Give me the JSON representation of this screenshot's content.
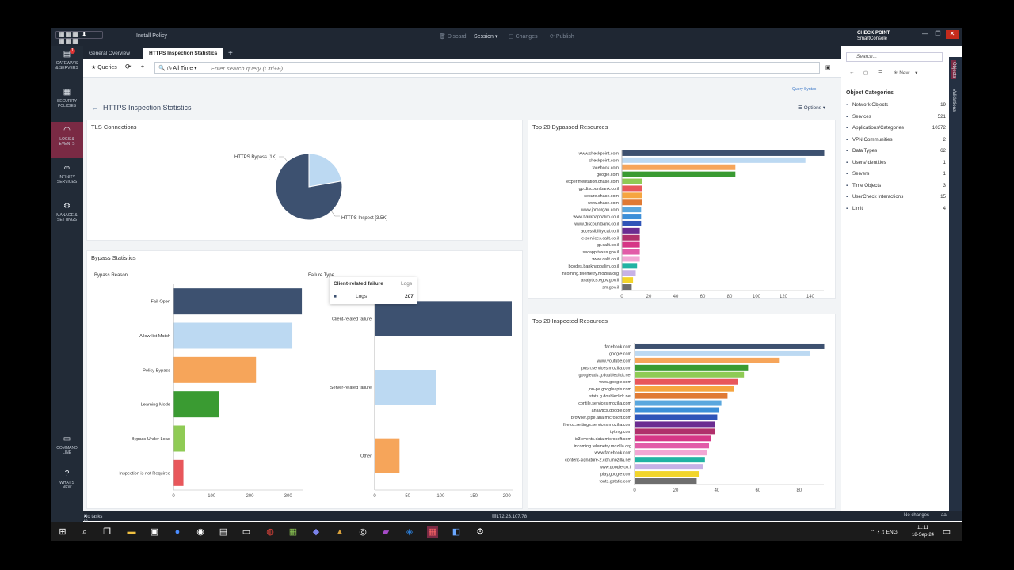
{
  "topbar": {
    "install_policy": "Install Policy",
    "discard": "Discard",
    "session": "Session",
    "changes": "Changes",
    "publish": "Publish",
    "brand_top": "CHECK POINT",
    "brand_bottom": "SmartConsole"
  },
  "nav": [
    {
      "label1": "GATEWAYS",
      "label2": "& SERVERS",
      "badge": "1"
    },
    {
      "label1": "SECURITY",
      "label2": "POLICIES"
    },
    {
      "label1": "LOGS &",
      "label2": "EVENTS"
    },
    {
      "label1": "INFINITY",
      "label2": "SERVICES"
    },
    {
      "label1": "MANAGE &",
      "label2": "SETTINGS"
    },
    {
      "label1": "COMMAND",
      "label2": "LINE"
    },
    {
      "label1": "WHAT'S",
      "label2": "NEW"
    }
  ],
  "tabs": [
    "General Overview",
    "HTTPS Inspection Statistics"
  ],
  "query": {
    "queries": "Queries",
    "time": "All Time",
    "placeholder": "Enter search query (Ctrl+F)",
    "syntax": "Query Syntax"
  },
  "page": {
    "title": "HTTPS Inspection Statistics",
    "options": "Options"
  },
  "tls": {
    "title": "TLS Connections",
    "slices": [
      {
        "label": "HTTPS Bypass [1K]",
        "value": 1,
        "color": "#bcd9f2"
      },
      {
        "label": "HTTPS Inspect [3.5K]",
        "value": 3.5,
        "color": "#3d5170"
      }
    ]
  },
  "bypass": {
    "title": "Bypass Statistics",
    "reason_title": "Bypass Reason",
    "failure_title": "Failure Type"
  },
  "tooltip": {
    "title": "Client-related failure",
    "col": "Logs",
    "row_label": "Logs",
    "row_value": "207"
  },
  "rpanel": {
    "search": "Search...",
    "new": "New...",
    "object_categories": "Object Categories",
    "categories": [
      {
        "name": "Network Objects",
        "count": "19"
      },
      {
        "name": "Services",
        "count": "521"
      },
      {
        "name": "Applications/Categories",
        "count": "10372"
      },
      {
        "name": "VPN Communities",
        "count": "2"
      },
      {
        "name": "Data Types",
        "count": "62"
      },
      {
        "name": "Users/Identities",
        "count": "1"
      },
      {
        "name": "Servers",
        "count": "1"
      },
      {
        "name": "Time Objects",
        "count": "3"
      },
      {
        "name": "UserCheck Interactions",
        "count": "15"
      },
      {
        "name": "Limit",
        "count": "4"
      }
    ],
    "strip": [
      "Objects",
      "Validations"
    ]
  },
  "status": {
    "tasks": "No tasks in progress",
    "ip": "172.23.107.78",
    "changes": "No changes",
    "user": "aa"
  },
  "taskbar": {
    "lang": "ENG",
    "time": "11:11",
    "date": "18-Sep-24"
  },
  "chart_data": [
    {
      "type": "pie",
      "title": "TLS Connections",
      "categories": [
        "HTTPS Bypass [1K]",
        "HTTPS Inspect [3.5K]"
      ],
      "values": [
        1000,
        3500
      ]
    },
    {
      "type": "bar",
      "orientation": "horizontal",
      "title": "Bypass Reason",
      "categories": [
        "Fail-Open",
        "Allow-list Match",
        "Policy Bypass",
        "Learning Mode",
        "Bypass Under Load",
        "Inspection is not Required"
      ],
      "values": [
        335,
        310,
        215,
        118,
        28,
        25
      ],
      "colors": [
        "#3d5170",
        "#bcd9f2",
        "#f6a55a",
        "#3a9b32",
        "#8fcb55",
        "#e8575b"
      ],
      "ticks": [
        0,
        100,
        200,
        300
      ],
      "xlim": [
        0,
        340
      ]
    },
    {
      "type": "bar",
      "orientation": "horizontal",
      "title": "Failure Type",
      "categories": [
        "Client-related failure",
        "Server-related failure",
        "Other"
      ],
      "values": [
        207,
        92,
        37
      ],
      "colors": [
        "#3d5170",
        "#bcd9f2",
        "#f6a55a"
      ],
      "ticks": [
        0,
        50,
        100,
        150,
        200
      ],
      "xlim": [
        0,
        210
      ]
    },
    {
      "type": "bar",
      "orientation": "horizontal",
      "title": "Top 20 Bypassed Resources",
      "categories": [
        "www.checkpoint.com",
        "checkpoint.com",
        "facebook.com",
        "google.com",
        "experimentation.chase.com",
        "gp.discountbank.co.il",
        "secure.chase.com",
        "www.chase.com",
        "www.jpmorgan.com",
        "www.bankhapoalim.co.il",
        "www.discountbank.co.il",
        "accessibility.cal.co.il",
        "e-services.calit.co.il",
        "gp.calit.co.il",
        "secapp.taxes.gov.il",
        "www.calit.co.il",
        "bcodes.bankhapoalim.co.il",
        "incoming.telemetry.mozilla.org",
        "analytics.egov.gov.il",
        "sm.gov.il"
      ],
      "values": [
        150,
        136,
        84,
        84,
        15,
        15,
        15,
        15,
        14,
        14,
        14,
        13,
        13,
        13,
        13,
        13,
        11,
        10,
        8,
        7
      ],
      "colors": [
        "#3d5170",
        "#bcd9f2",
        "#f6a55a",
        "#3a9b32",
        "#8fcb55",
        "#e8575b",
        "#f6a540",
        "#e07a34",
        "#5aa7de",
        "#3c8fd8",
        "#2f54b8",
        "#6b2c91",
        "#b0306b",
        "#d63686",
        "#e25ca8",
        "#f2a7d4",
        "#21b3a3",
        "#c7b2e6",
        "#f2d52b",
        "#6e6e6e"
      ],
      "ticks": [
        0,
        20,
        40,
        60,
        80,
        100,
        120,
        140
      ],
      "xlim": [
        0,
        150
      ]
    },
    {
      "type": "bar",
      "orientation": "horizontal",
      "title": "Top 20 Inspected Resources",
      "categories": [
        "facebook.com",
        "google.com",
        "www.youtube.com",
        "push.services.mozilla.com",
        "googleads.g.doubleclick.net",
        "www.google.com",
        "jnn-pa.googleapis.com",
        "stats.g.doubleclick.net",
        "contile.services.mozilla.com",
        "analytics.google.com",
        "browser.pipe.aria.microsoft.com",
        "firefox.settings.services.mozilla.com",
        "i.ytimg.com",
        "ic3.events.data.microsoft.com",
        "incoming.telemetry.mozilla.org",
        "www.facebook.com",
        "content-signature-2.cdn.mozilla.net",
        "www.google.co.il",
        "play.google.com",
        "fonts.gstatic.com"
      ],
      "values": [
        92,
        85,
        70,
        55,
        53,
        50,
        48,
        45,
        42,
        41,
        40,
        39,
        39,
        37,
        36,
        35,
        34,
        33,
        31,
        30
      ],
      "colors": [
        "#3d5170",
        "#bcd9f2",
        "#f6a55a",
        "#3a9b32",
        "#8fcb55",
        "#e8575b",
        "#f6a540",
        "#e07a34",
        "#5aa7de",
        "#3c8fd8",
        "#2f54b8",
        "#6b2c91",
        "#b0306b",
        "#d63686",
        "#e25ca8",
        "#f2a7d4",
        "#21b3a3",
        "#c7b2e6",
        "#f2d52b",
        "#6e6e6e"
      ],
      "ticks": [
        0,
        20,
        40,
        60,
        80
      ],
      "xlim": [
        0,
        92
      ]
    }
  ]
}
